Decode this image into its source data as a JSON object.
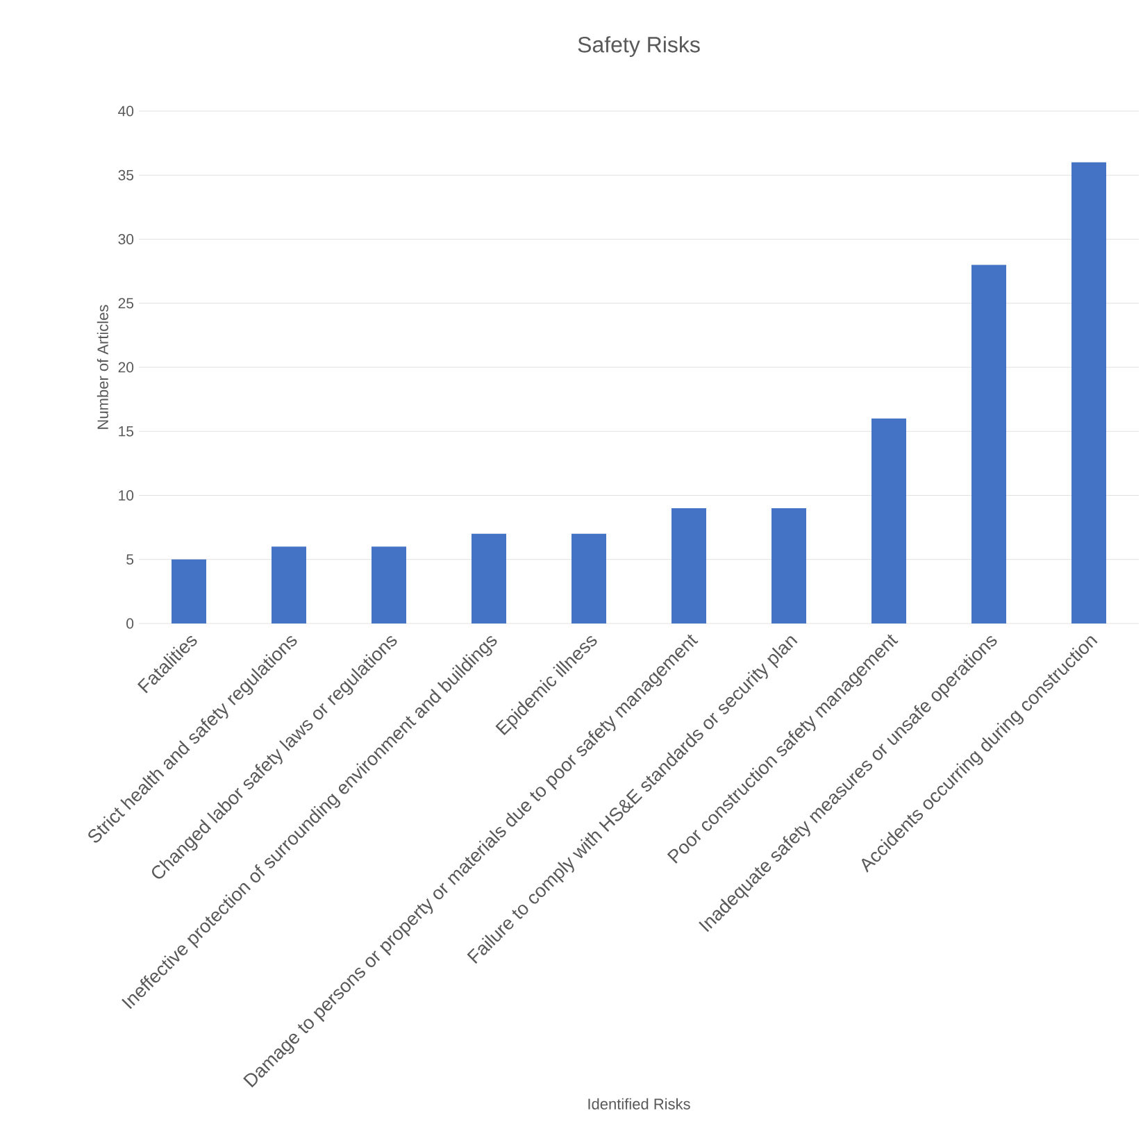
{
  "chart_data": {
    "type": "bar",
    "title": "Safety Risks",
    "xlabel": "Identified Risks",
    "ylabel": "Number of Articles",
    "categories": [
      "Fatalities",
      "Strict health and safety regulations",
      "Changed labor safety laws or regulations",
      "Ineffective protection of surrounding environment and buildings",
      "Epidemic illness",
      "Damage to persons or property or materials due to poor safety management",
      "Failure to comply with HS&E standards or security plan",
      "Poor construction safety management",
      "Inadequate safety measures or unsafe operations",
      "Accidents occurring during construction"
    ],
    "values": [
      5,
      6,
      6,
      7,
      7,
      9,
      9,
      16,
      28,
      36
    ],
    "color": "#4472c4",
    "ylim": [
      0,
      40
    ],
    "yticks": [
      0,
      5,
      10,
      15,
      20,
      25,
      30,
      35,
      40
    ],
    "grid": "y"
  }
}
